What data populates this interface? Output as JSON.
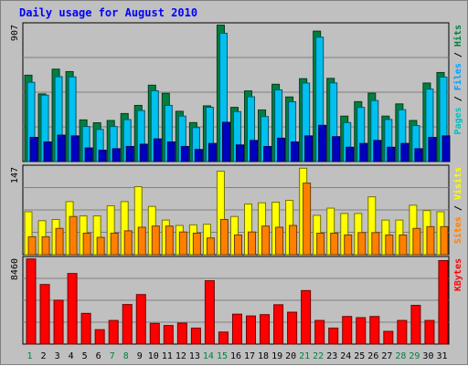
{
  "chart_data": {
    "type": "bar",
    "title": "Daily usage for August 2010",
    "days": [
      "1",
      "2",
      "3",
      "4",
      "5",
      "6",
      "7",
      "8",
      "9",
      "10",
      "11",
      "12",
      "13",
      "14",
      "15",
      "16",
      "17",
      "18",
      "19",
      "20",
      "21",
      "22",
      "23",
      "24",
      "25",
      "26",
      "27",
      "28",
      "29",
      "30",
      "31"
    ],
    "weekend_days": [
      "1",
      "7",
      "8",
      "14",
      "15",
      "21",
      "22",
      "28",
      "29"
    ],
    "panels": [
      {
        "id": "pages_files_hits",
        "max_label": "907",
        "ymax": 907,
        "right_label_parts": [
          {
            "text": "Pages",
            "color": "#00c0c0"
          },
          {
            "text": " / ",
            "color": "#000000"
          },
          {
            "text": "Files",
            "color": "#00a0ff"
          },
          {
            "text": " / ",
            "color": "#000000"
          },
          {
            "text": "Hits",
            "color": "#008040"
          }
        ],
        "series": [
          {
            "name": "Hits",
            "color": "#008040",
            "values": [
              572,
              448,
              612,
              596,
              276,
              257,
              272,
              318,
              372,
              506,
              452,
              333,
              258,
              369,
              904,
              359,
              468,
              342,
              512,
              428,
              549,
              864,
              551,
              301,
              397,
              453,
              301,
              382,
              272,
              520,
              590
            ]
          },
          {
            "name": "Files",
            "color": "#00c0f0",
            "values": [
              525,
              440,
              562,
              561,
              232,
              213,
              232,
              278,
              338,
              469,
              372,
              301,
              225,
              360,
              850,
              331,
              429,
              298,
              475,
              396,
              520,
              824,
              521,
              258,
              359,
              404,
              279,
              343,
              238,
              480,
              560
            ]
          },
          {
            "name": "Pages",
            "color": "#0000c0",
            "values": [
              160,
              130,
              175,
              170,
              90,
              75,
              85,
              100,
              115,
              150,
              130,
              100,
              80,
              120,
              260,
              110,
              140,
              100,
              155,
              130,
              170,
              240,
              165,
              95,
              120,
              140,
              95,
              120,
              85,
              160,
              170
            ]
          }
        ]
      },
      {
        "id": "sites_visits",
        "max_label": "147",
        "ymax": 147,
        "right_label_parts": [
          {
            "text": "Sites",
            "color": "#ff8000"
          },
          {
            "text": " / ",
            "color": "#000000"
          },
          {
            "text": "Visits",
            "color": "#ffff00"
          }
        ],
        "series": [
          {
            "name": "Visits",
            "color": "#ffff00",
            "values": [
              72,
              57,
              59,
              89,
              65,
              65,
              82,
              89,
              114,
              81,
              58,
              49,
              50,
              51,
              140,
              64,
              85,
              87,
              88,
              91,
              145,
              66,
              78,
              69,
              69,
              97,
              58,
              58,
              83,
              74,
              72
            ]
          },
          {
            "name": "Sites",
            "color": "#ff8000",
            "values": [
              30,
              30,
              44,
              64,
              36,
              29,
              36,
              40,
              46,
              48,
              48,
              38,
              36,
              28,
              59,
              33,
              38,
              48,
              46,
              49,
              120,
              36,
              36,
              33,
              37,
              37,
              33,
              33,
              44,
              47,
              47
            ]
          }
        ]
      },
      {
        "id": "kbytes",
        "max_label": "8460",
        "ymax": 8460,
        "right_label_parts": [
          {
            "text": "KBytes",
            "color": "#ff0000"
          }
        ],
        "series": [
          {
            "name": "KBytes",
            "color": "#ff0000",
            "values": [
              8397,
              5877,
              4328,
              6961,
              3031,
              1422,
              2332,
              3905,
              4885,
              2041,
              1833,
              2068,
              1580,
              6250,
              1189,
              2953,
              2777,
              2906,
              3883,
              3147,
              5279,
              2332,
              1580,
              2723,
              2608,
              2723,
              1258,
              2332,
              3820,
              2332,
              8234
            ]
          }
        ]
      }
    ]
  }
}
